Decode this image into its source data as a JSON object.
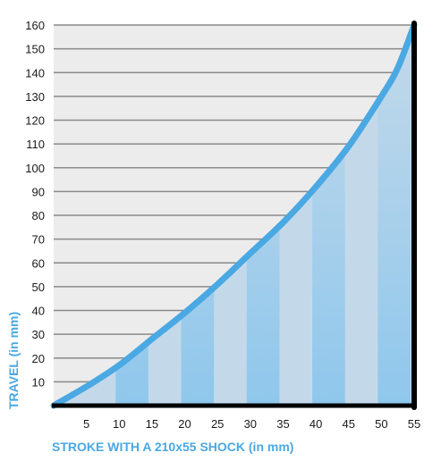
{
  "chart_data": {
    "type": "area",
    "xlabel": "STROKE WITH A 210x55 SHOCK (in mm)",
    "ylabel": "TRAVEL (in mm)",
    "xlim": [
      0,
      55
    ],
    "ylim": [
      0,
      160
    ],
    "xticks": [
      5,
      10,
      15,
      20,
      25,
      30,
      35,
      40,
      45,
      50,
      55
    ],
    "yticks": [
      10,
      20,
      30,
      40,
      50,
      60,
      70,
      80,
      90,
      100,
      110,
      120,
      130,
      140,
      150,
      160
    ],
    "grid": true,
    "series": [
      {
        "x": [
          0,
          5,
          10,
          15,
          20,
          25,
          30,
          35,
          40,
          45,
          50,
          52.5,
          55
        ],
        "y": [
          0,
          8,
          17,
          28,
          39,
          51,
          64,
          77,
          92,
          109,
          130,
          142,
          160
        ]
      }
    ],
    "colors": {
      "line": "#4aa8e3",
      "fill": "#c3d9ea",
      "stripe": "#8fc7ec",
      "plot_bg": "#ececec",
      "grid": "#8a8a8a",
      "axis": "#000000",
      "title": "#4aa8e3"
    }
  }
}
